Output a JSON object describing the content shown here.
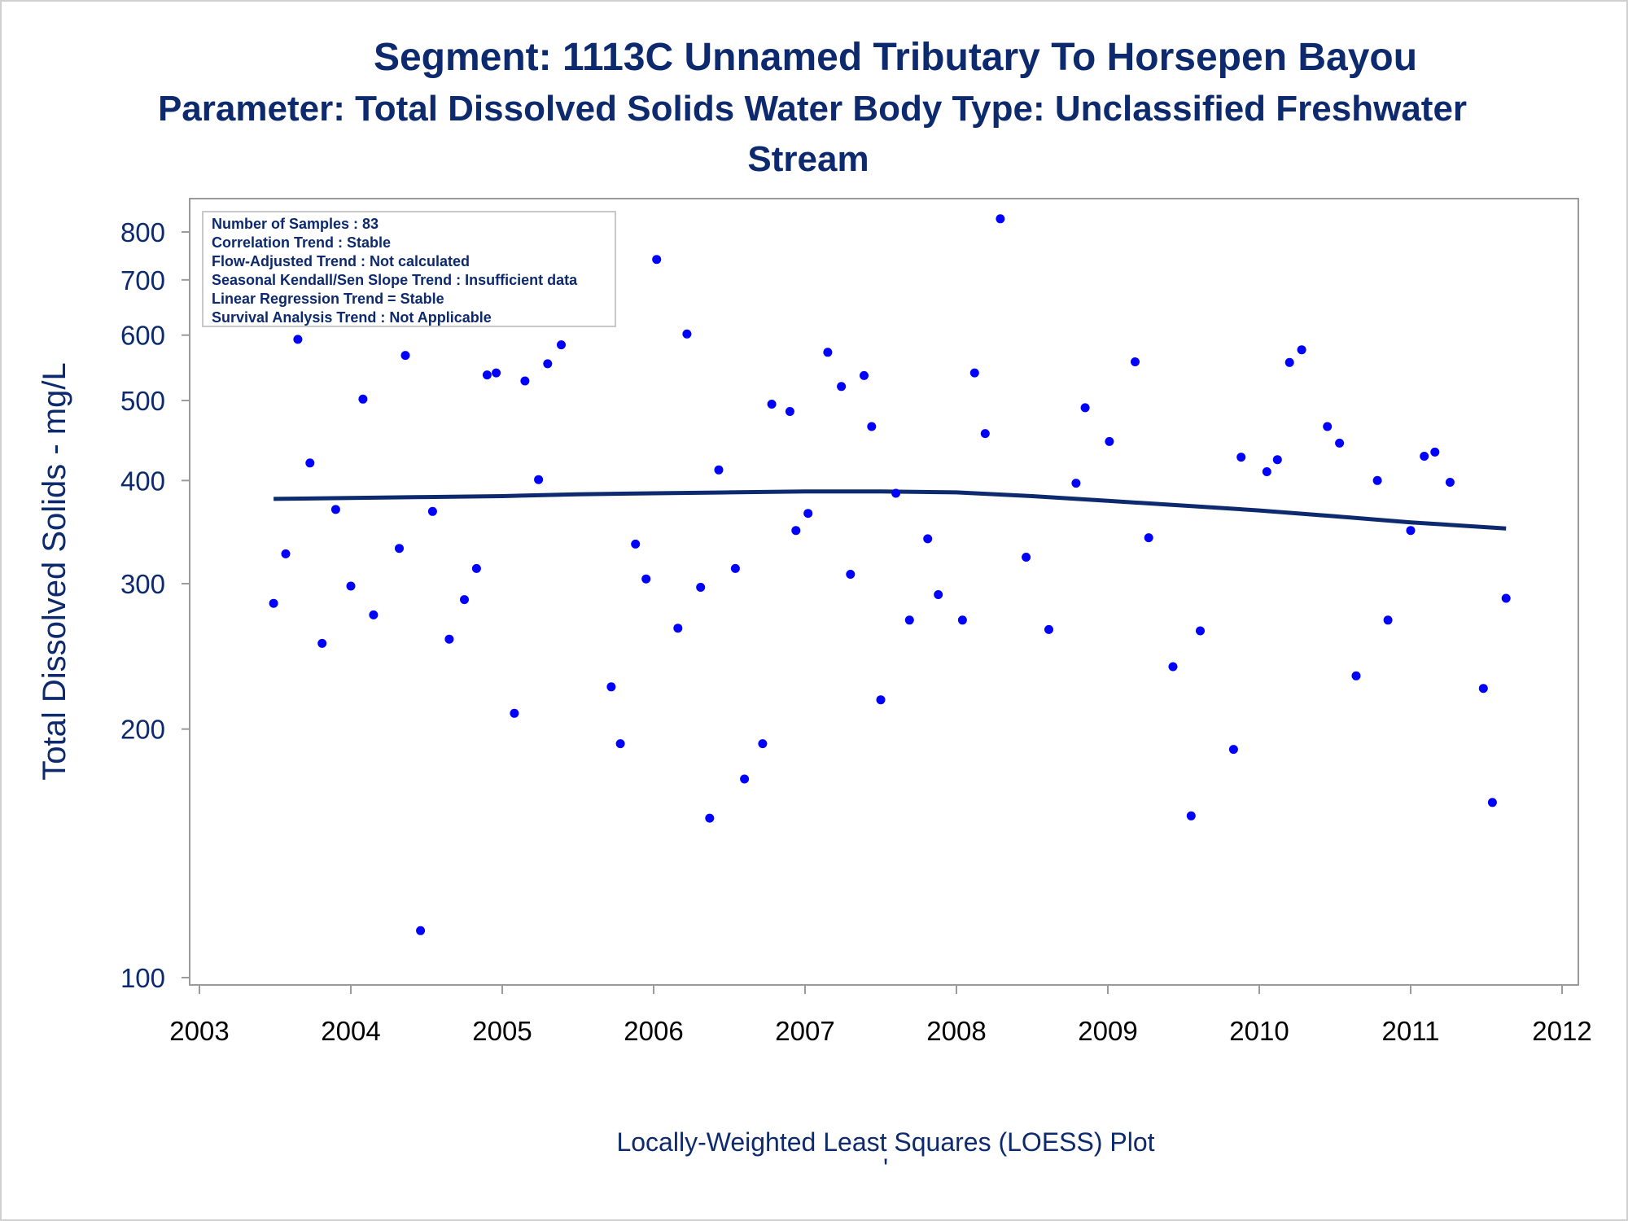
{
  "chart_data": {
    "type": "scatter",
    "title": "Segment: 1113C  Unnamed Tributary To Horsepen Bayou",
    "subtitle_lines": [
      "Parameter: Total Dissolved Solids   Water Body Type: Unclassified Freshwater",
      "Stream"
    ],
    "xlabel": "Locally-Weighted Least Squares (LOESS) Plot",
    "footnote": "'",
    "ylabel": "Total Dissolved Solids - mg/L",
    "y_scale": "log",
    "xlim": [
      2003,
      2012
    ],
    "ylim": [
      100,
      850
    ],
    "x_ticks": [
      "2003",
      "2004",
      "2005",
      "2006",
      "2007",
      "2008",
      "2009",
      "2010",
      "2011",
      "2012"
    ],
    "y_ticks": [
      100,
      200,
      300,
      400,
      500,
      600,
      700,
      800
    ],
    "y_tick_labels": [
      "100",
      "200",
      "300",
      "400",
      "500",
      "600",
      "700",
      "800"
    ],
    "stats_box": [
      "Number of Samples : 83",
      "Correlation Trend : Stable",
      "Flow-Adjusted Trend : Not calculated",
      "Seasonal Kendall/Sen Slope Trend : Insufficient data",
      "Linear Regression Trend = Stable",
      "Survival Analysis Trend : Not Applicable"
    ],
    "stats_box_placement": "top-left",
    "series": [
      {
        "type": "scatter",
        "color": "#0000ff",
        "points": [
          [
            2003.49,
            284
          ],
          [
            2003.57,
            326
          ],
          [
            2003.65,
            593
          ],
          [
            2003.73,
            420
          ],
          [
            2003.81,
            254
          ],
          [
            2003.9,
            369
          ],
          [
            2004.0,
            298
          ],
          [
            2004.08,
            502
          ],
          [
            2004.15,
            275
          ],
          [
            2004.24,
            622
          ],
          [
            2004.32,
            331
          ],
          [
            2004.36,
            567
          ],
          [
            2004.46,
            114
          ],
          [
            2004.54,
            367
          ],
          [
            2004.65,
            257
          ],
          [
            2004.75,
            287
          ],
          [
            2004.83,
            313
          ],
          [
            2004.9,
            537
          ],
          [
            2004.96,
            540
          ],
          [
            2005.08,
            209
          ],
          [
            2005.15,
            528
          ],
          [
            2005.24,
            401
          ],
          [
            2005.3,
            554
          ],
          [
            2005.39,
            584
          ],
          [
            2005.72,
            225
          ],
          [
            2005.78,
            192
          ],
          [
            2005.88,
            335
          ],
          [
            2005.95,
            304
          ],
          [
            2006.02,
            741
          ],
          [
            2006.16,
            265
          ],
          [
            2006.22,
            602
          ],
          [
            2006.31,
            297
          ],
          [
            2006.37,
            156
          ],
          [
            2006.43,
            412
          ],
          [
            2006.54,
            313
          ],
          [
            2006.6,
            174
          ],
          [
            2006.72,
            192
          ],
          [
            2006.78,
            495
          ],
          [
            2006.9,
            485
          ],
          [
            2006.94,
            348
          ],
          [
            2007.02,
            365
          ],
          [
            2007.15,
            572
          ],
          [
            2007.24,
            520
          ],
          [
            2007.3,
            308
          ],
          [
            2007.39,
            536
          ],
          [
            2007.44,
            465
          ],
          [
            2007.5,
            217
          ],
          [
            2007.6,
            386
          ],
          [
            2007.69,
            271
          ],
          [
            2007.81,
            340
          ],
          [
            2007.88,
            291
          ],
          [
            2008.04,
            271
          ],
          [
            2008.12,
            540
          ],
          [
            2008.19,
            456
          ],
          [
            2008.29,
            830
          ],
          [
            2008.46,
            323
          ],
          [
            2008.61,
            264
          ],
          [
            2008.79,
            397
          ],
          [
            2008.85,
            490
          ],
          [
            2009.01,
            446
          ],
          [
            2009.18,
            557
          ],
          [
            2009.27,
            341
          ],
          [
            2009.43,
            238
          ],
          [
            2009.55,
            157
          ],
          [
            2009.61,
            263
          ],
          [
            2009.83,
            189
          ],
          [
            2009.88,
            427
          ],
          [
            2010.05,
            410
          ],
          [
            2010.12,
            424
          ],
          [
            2010.2,
            556
          ],
          [
            2010.28,
            576
          ],
          [
            2010.45,
            465
          ],
          [
            2010.53,
            444
          ],
          [
            2010.64,
            232
          ],
          [
            2010.78,
            400
          ],
          [
            2010.85,
            271
          ],
          [
            2011.0,
            348
          ],
          [
            2011.09,
            428
          ],
          [
            2011.16,
            433
          ],
          [
            2011.26,
            398
          ],
          [
            2011.48,
            224
          ],
          [
            2011.54,
            163
          ],
          [
            2011.63,
            288
          ]
        ]
      },
      {
        "type": "line",
        "color": "#0d2a6e",
        "points": [
          [
            2003.49,
            380
          ],
          [
            2004.0,
            381
          ],
          [
            2004.5,
            382
          ],
          [
            2005.0,
            383
          ],
          [
            2005.5,
            385
          ],
          [
            2006.0,
            386
          ],
          [
            2006.5,
            387
          ],
          [
            2007.0,
            388
          ],
          [
            2007.5,
            388
          ],
          [
            2008.0,
            387
          ],
          [
            2008.5,
            383
          ],
          [
            2009.0,
            378
          ],
          [
            2009.5,
            373
          ],
          [
            2010.0,
            368
          ],
          [
            2010.5,
            362
          ],
          [
            2011.0,
            356
          ],
          [
            2011.63,
            350
          ]
        ]
      }
    ]
  }
}
